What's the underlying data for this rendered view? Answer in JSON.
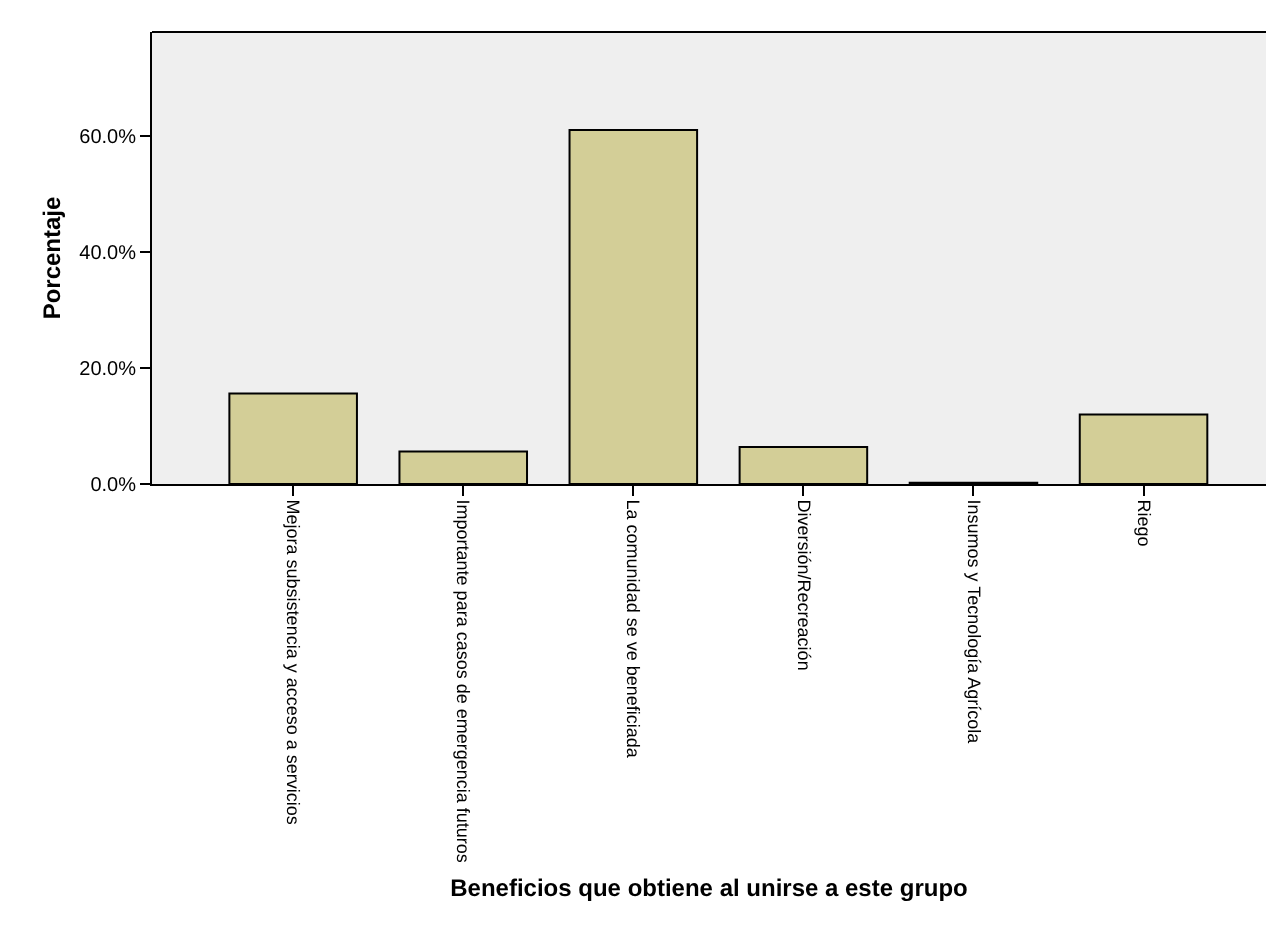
{
  "chart_data": {
    "type": "bar",
    "xlabel": "Beneficios que obtiene al unirse a este grupo",
    "ylabel": "Porcentaje",
    "categories": [
      "Mejora subsistencia y acceso a servicios",
      "Importante para casos de emergencia futuros",
      "La comunidad se ve beneficiada",
      "Diversión/Recreación",
      "Insumos y Tecnología Agrícola",
      "Riego"
    ],
    "values": [
      15.6,
      5.6,
      61.1,
      6.4,
      0.2,
      12.0
    ],
    "color": "#d3ce97",
    "ylim": [
      0,
      78
    ],
    "yticks": [
      {
        "value": 0,
        "label": "0.0%"
      },
      {
        "value": 20,
        "label": "20.0%"
      },
      {
        "value": 40,
        "label": "40.0%"
      },
      {
        "value": 60,
        "label": "60.0%"
      }
    ],
    "grid": false,
    "legend": false
  }
}
